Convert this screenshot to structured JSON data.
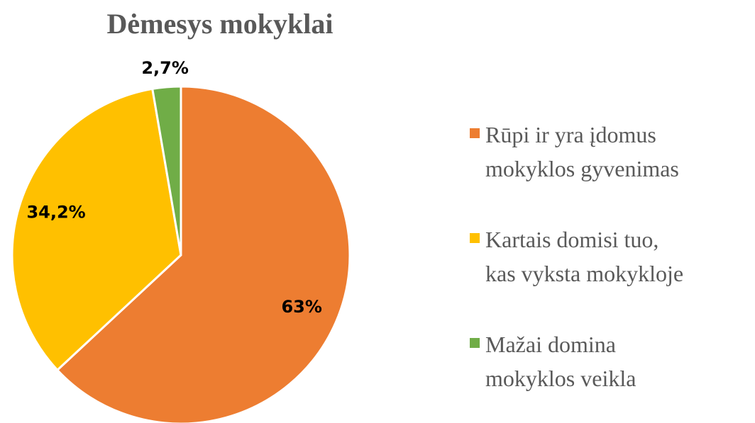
{
  "chart_data": {
    "type": "pie",
    "title": "Dėmesys mokyklai",
    "categories": [
      "Rūpi ir yra įdomus\nmokyklos gyvenimas",
      "Kartais domisi tuo,\nkas vyksta mokykloje",
      "Mažai domina\nmokyklos veikla"
    ],
    "values": [
      63,
      34.2,
      2.7
    ],
    "value_labels": [
      "63%",
      "34,2%",
      "2,7%"
    ],
    "colors": [
      "#ed7d31",
      "#ffc000",
      "#70ad47"
    ],
    "legend": "right"
  }
}
